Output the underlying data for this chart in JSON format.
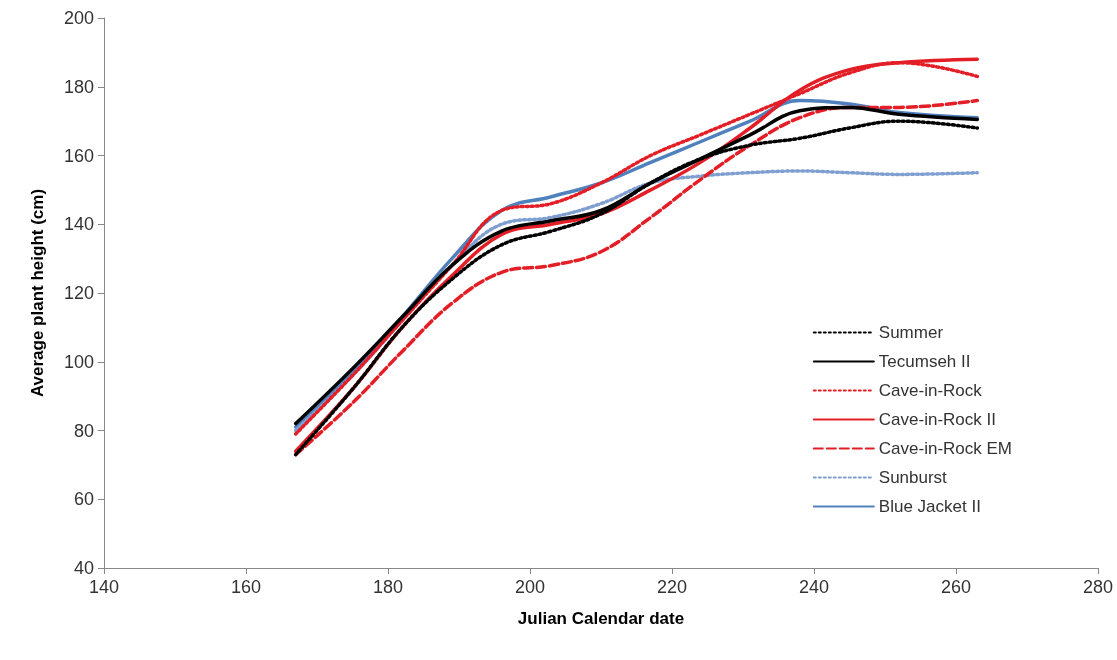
{
  "chart_data": {
    "type": "line",
    "xlabel": "Julian Calendar date",
    "ylabel": "Average plant height (cm)",
    "x": [
      167,
      175,
      182,
      189,
      196,
      203,
      210,
      217,
      224,
      231,
      238,
      245,
      252,
      263
    ],
    "xlim": [
      140,
      280
    ],
    "xticks": [
      140,
      160,
      180,
      200,
      220,
      240,
      260,
      280
    ],
    "ylim": [
      40,
      200
    ],
    "yticks": [
      40,
      60,
      80,
      100,
      120,
      140,
      160,
      180,
      200
    ],
    "grid": false,
    "legend": "bottom right",
    "marker": "none",
    "series": [
      {
        "name": "Summer",
        "color": "#000000",
        "line_style": "dotted",
        "values": [
          73,
          92,
          110,
          124,
          134,
          138,
          143,
          152,
          159,
          163,
          165,
          168,
          170,
          168
        ]
      },
      {
        "name": "Tecumseh II",
        "color": "#000000",
        "line_style": "solid",
        "values": [
          82,
          98,
          113,
          128,
          138,
          141,
          144,
          152,
          159,
          166,
          173,
          174,
          172,
          170.5
        ]
      },
      {
        "name": "Cave-in-Rock",
        "color": "#e41e26",
        "line_style": "dotted",
        "values": [
          79,
          96,
          112,
          128,
          144,
          146,
          152,
          160,
          166,
          172,
          178,
          184,
          187,
          183
        ]
      },
      {
        "name": "Cave-in-Rock II",
        "color": "#e41e26",
        "line_style": "solid",
        "values": [
          74,
          92,
          110,
          125,
          137,
          140,
          143,
          150,
          158,
          168,
          179,
          185,
          187,
          188
        ]
      },
      {
        "name": "Cave-in-Rock EM",
        "color": "#e41e26",
        "line_style": "dashed",
        "values": [
          73,
          88,
          103,
          117,
          126,
          128,
          132,
          142,
          153,
          163,
          171,
          174,
          174,
          176
        ]
      },
      {
        "name": "Sunburst",
        "color": "#7f9fd0",
        "line_style": "dotted",
        "values": [
          80,
          96,
          112,
          128,
          140,
          142,
          146,
          152,
          154,
          155,
          155.5,
          155,
          154.5,
          155
        ]
      },
      {
        "name": "Blue Jacket II",
        "color": "#4f81bd",
        "line_style": "solid",
        "values": [
          81,
          97,
          113,
          130,
          144,
          148,
          152,
          158,
          164,
          170,
          176,
          175,
          172.5,
          171
        ]
      }
    ]
  }
}
